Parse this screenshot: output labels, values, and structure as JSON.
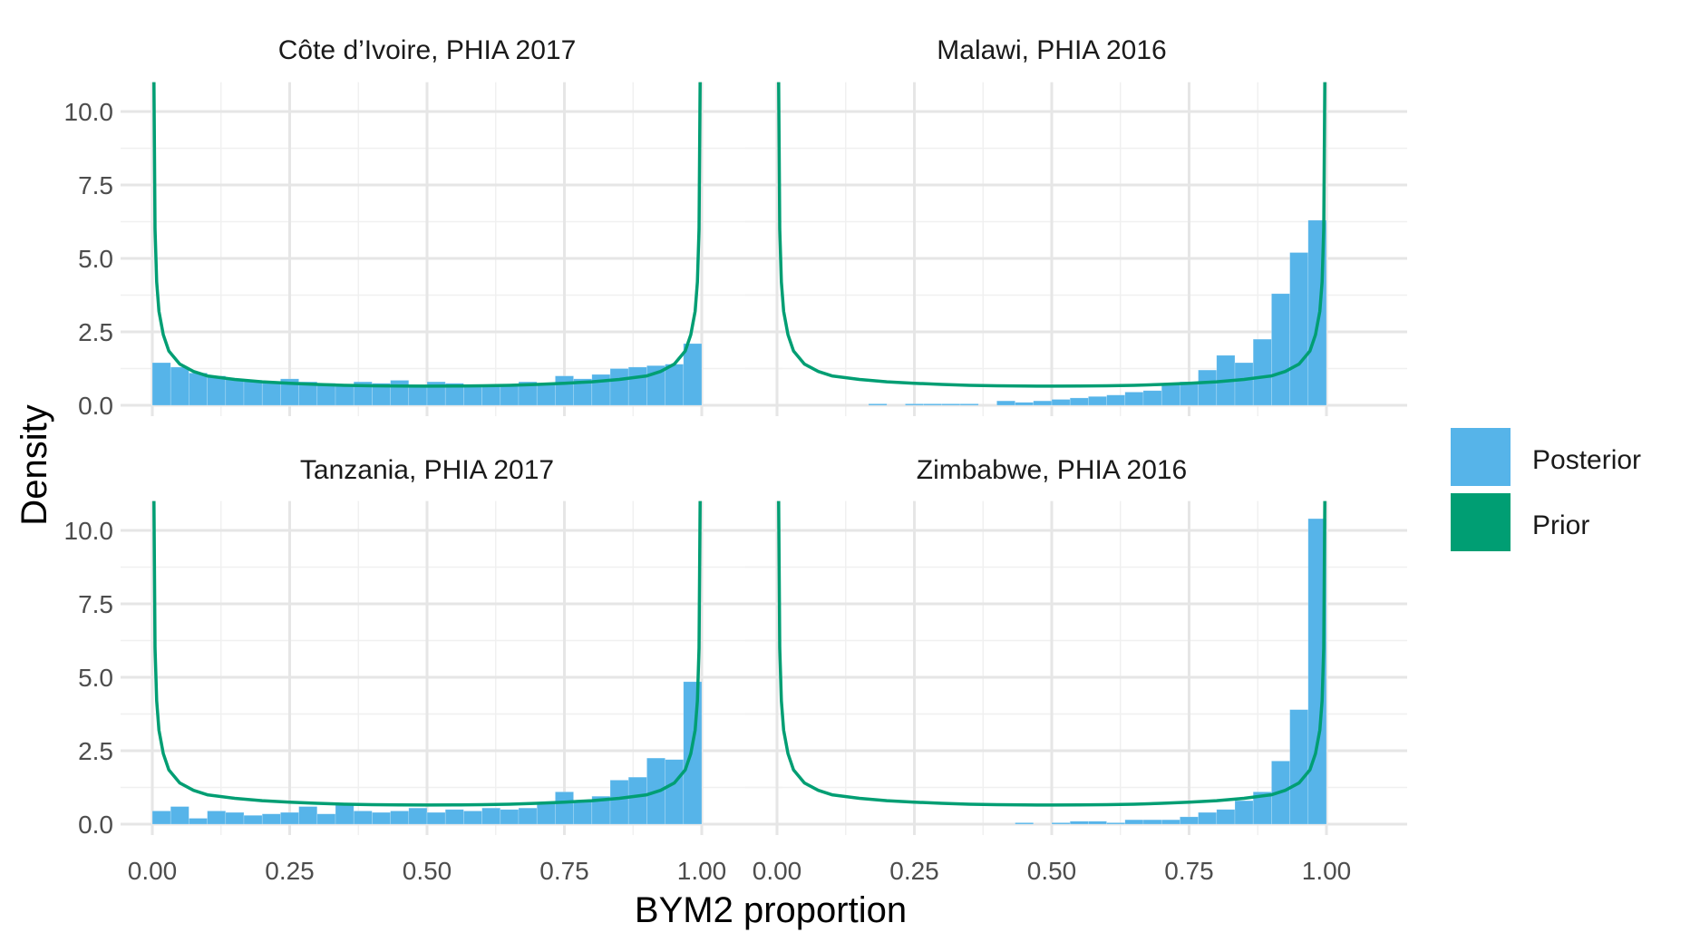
{
  "chart_data": {
    "type": "bar",
    "subtype": "faceted histogram with prior density line",
    "xlabel": "BYM2 proportion",
    "ylabel": "Density",
    "xlim": [
      0,
      1
    ],
    "ylim": [
      0,
      11
    ],
    "x_ticks": [
      "0.00",
      "0.25",
      "0.50",
      "0.75",
      "1.00"
    ],
    "y_ticks": [
      "0.0",
      "2.5",
      "5.0",
      "7.5",
      "10.0"
    ],
    "grid": true,
    "legend": {
      "placement": "right",
      "entries": [
        {
          "label": "Posterior",
          "color": "#56b4e9"
        },
        {
          "label": "Prior",
          "color": "#009e73"
        }
      ]
    },
    "bin_centers": [
      0.0167,
      0.05,
      0.0833,
      0.1167,
      0.15,
      0.1833,
      0.2167,
      0.25,
      0.2833,
      0.3167,
      0.35,
      0.3833,
      0.4167,
      0.45,
      0.4833,
      0.5167,
      0.55,
      0.5833,
      0.6167,
      0.65,
      0.6833,
      0.7167,
      0.75,
      0.7833,
      0.8167,
      0.85,
      0.8833,
      0.9167,
      0.95,
      0.9833
    ],
    "prior_density": {
      "x": [
        0.003,
        0.005,
        0.008,
        0.012,
        0.02,
        0.03,
        0.05,
        0.075,
        0.1,
        0.15,
        0.2,
        0.25,
        0.3,
        0.35,
        0.4,
        0.45,
        0.5,
        0.55,
        0.6,
        0.65,
        0.7,
        0.75,
        0.8,
        0.85,
        0.9,
        0.925,
        0.95,
        0.97,
        0.98,
        0.988,
        0.992,
        0.995,
        0.997
      ],
      "y": [
        11.0,
        6.0,
        4.2,
        3.2,
        2.4,
        1.85,
        1.4,
        1.15,
        1.0,
        0.88,
        0.8,
        0.75,
        0.71,
        0.68,
        0.665,
        0.655,
        0.65,
        0.655,
        0.665,
        0.68,
        0.71,
        0.75,
        0.8,
        0.88,
        1.0,
        1.15,
        1.4,
        1.85,
        2.4,
        3.2,
        4.2,
        6.0,
        11.0
      ]
    },
    "panels": [
      {
        "title": "Côte d’Ivoire, PHIA 2017",
        "posterior": [
          1.45,
          1.3,
          1.1,
          1.0,
          0.9,
          0.85,
          0.8,
          0.9,
          0.8,
          0.75,
          0.7,
          0.8,
          0.75,
          0.85,
          0.7,
          0.8,
          0.75,
          0.7,
          0.7,
          0.72,
          0.8,
          0.75,
          1.0,
          0.9,
          1.05,
          1.25,
          1.3,
          1.35,
          1.4,
          2.1
        ]
      },
      {
        "title": "Malawi, PHIA 2016",
        "posterior": [
          0,
          0,
          0,
          0,
          0,
          0.05,
          0,
          0.05,
          0.05,
          0.05,
          0.05,
          0,
          0.15,
          0.1,
          0.15,
          0.2,
          0.25,
          0.3,
          0.35,
          0.45,
          0.5,
          0.7,
          0.8,
          1.2,
          1.7,
          1.45,
          2.25,
          3.8,
          5.2,
          6.3
        ]
      },
      {
        "title": "Tanzania, PHIA 2017",
        "posterior": [
          0.45,
          0.6,
          0.2,
          0.45,
          0.4,
          0.3,
          0.35,
          0.4,
          0.6,
          0.35,
          0.65,
          0.45,
          0.4,
          0.45,
          0.55,
          0.4,
          0.5,
          0.45,
          0.55,
          0.5,
          0.55,
          0.7,
          1.1,
          0.8,
          0.95,
          1.5,
          1.6,
          2.25,
          2.2,
          4.85
        ]
      },
      {
        "title": "Zimbabwe, PHIA 2016",
        "posterior": [
          0,
          0,
          0,
          0,
          0,
          0,
          0,
          0,
          0,
          0,
          0,
          0,
          0,
          0.05,
          0,
          0.05,
          0.1,
          0.1,
          0.05,
          0.15,
          0.15,
          0.15,
          0.25,
          0.4,
          0.5,
          0.8,
          1.1,
          2.15,
          3.9,
          10.4
        ]
      }
    ]
  }
}
